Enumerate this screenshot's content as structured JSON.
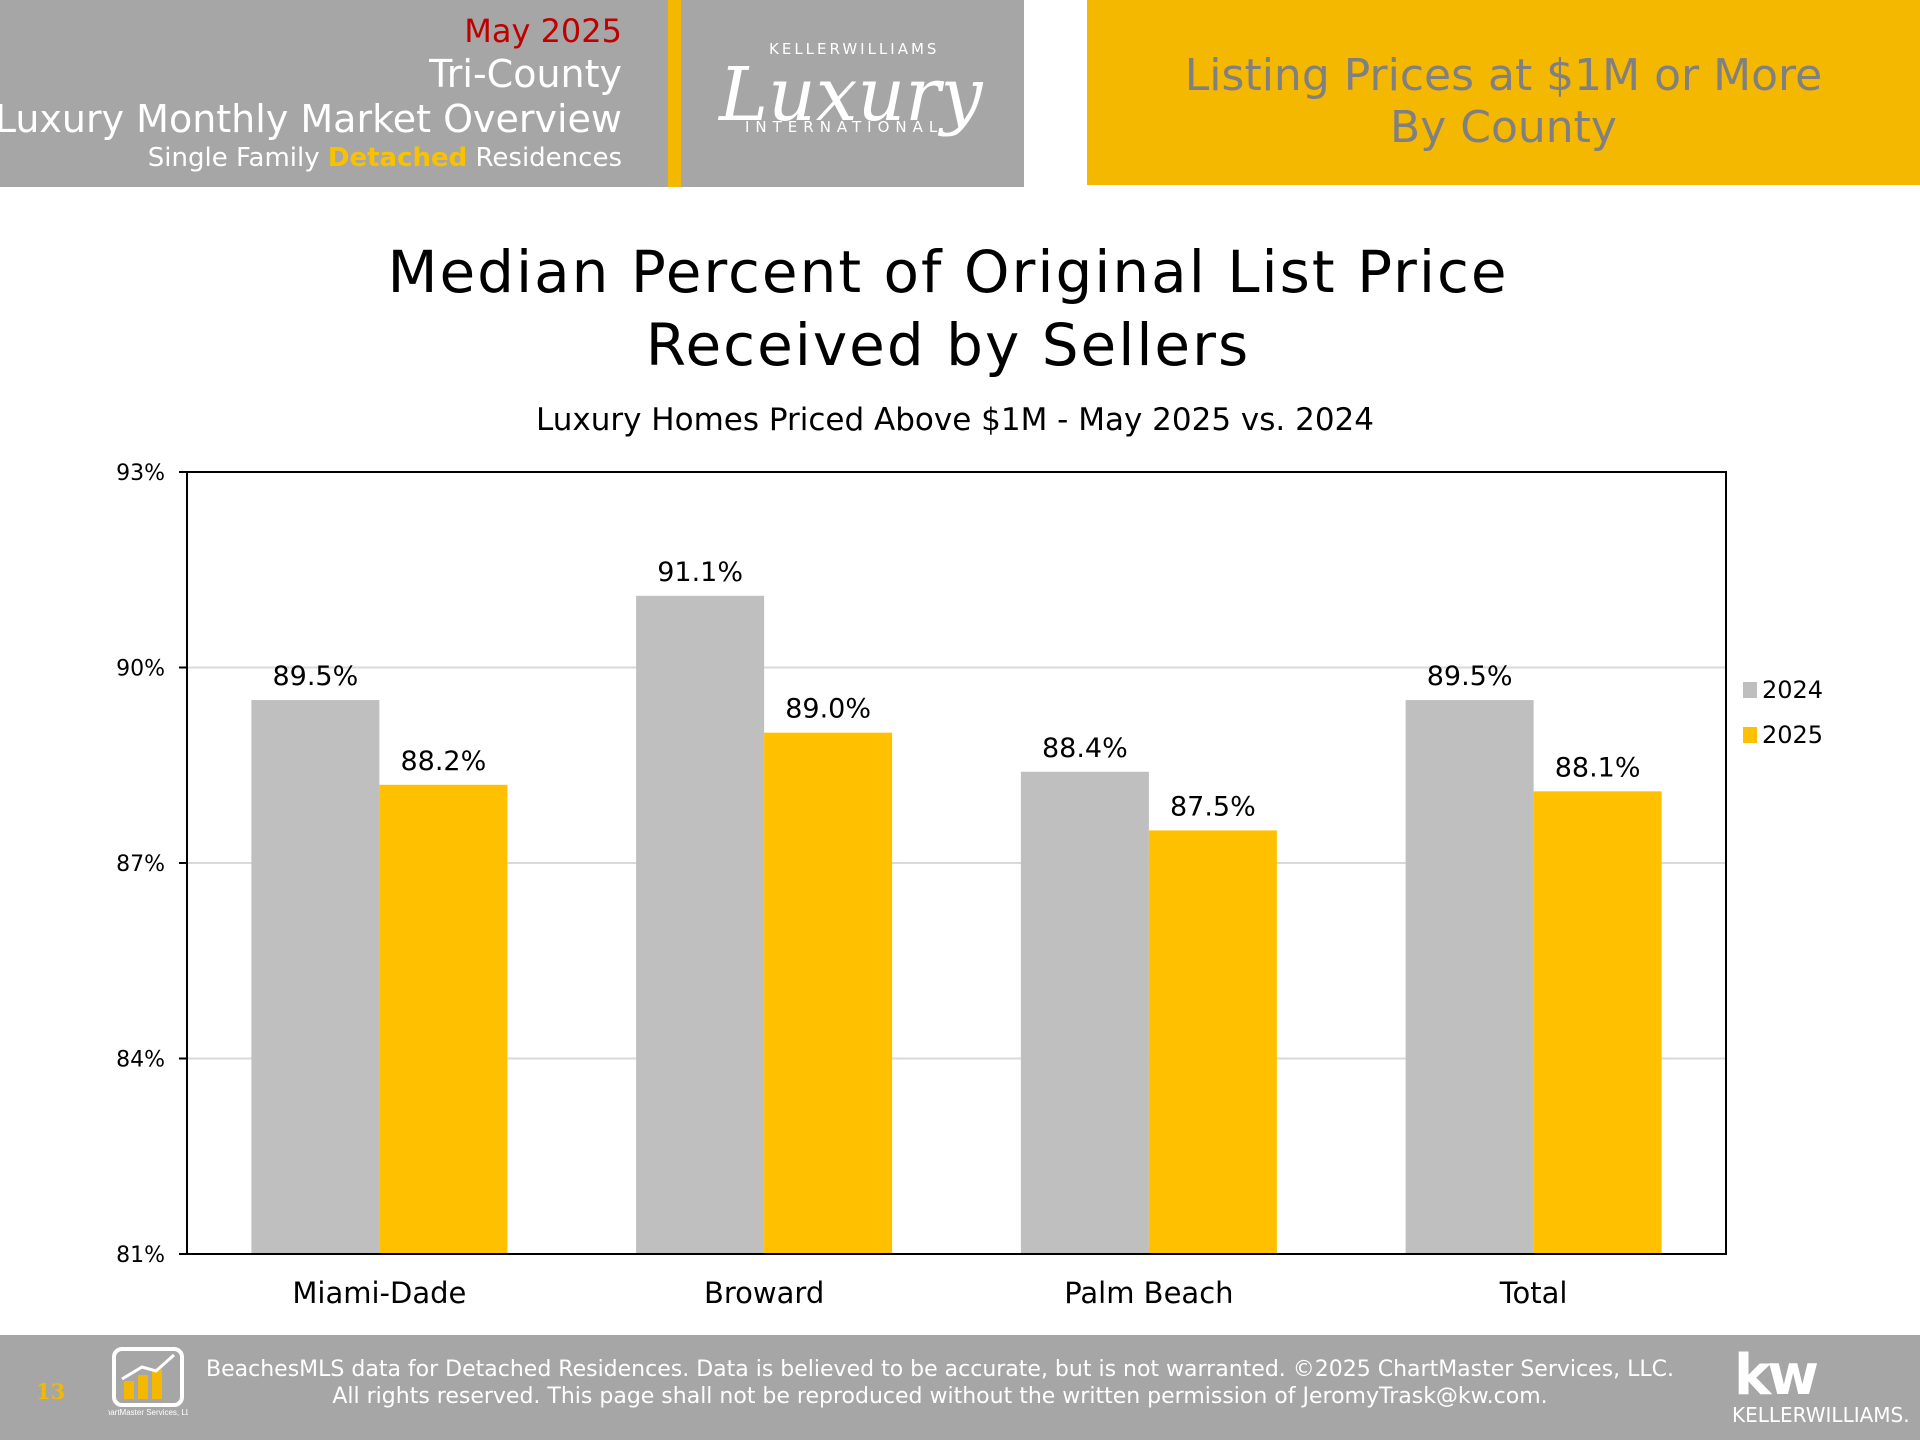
{
  "header": {
    "month": "May 2025",
    "region": "Tri-County",
    "overview": "Luxury Monthly Market Overview",
    "subtitle_pre": "Single Family ",
    "subtitle_highlight": "Detached",
    "subtitle_post": " Residences",
    "logo_top": "KELLERWILLIAMS",
    "logo_script": "Luxury",
    "logo_bottom": "INTERNATIONAL",
    "section_line1": "Listing Prices at $1M or More",
    "section_line2": "By County"
  },
  "chart_data": {
    "type": "bar",
    "title_line1": "Median Percent of Original List Price",
    "title_line2": "Received by Sellers",
    "subtitle": "Luxury Homes Priced Above $1M - May 2025 vs. 2024",
    "categories": [
      "Miami-Dade",
      "Broward",
      "Palm Beach",
      "Total"
    ],
    "series": [
      {
        "name": "2024",
        "values": [
          89.5,
          91.1,
          88.4,
          89.5
        ],
        "labels": [
          "89.5%",
          "91.1%",
          "88.4%",
          "89.5%"
        ],
        "color": "#bfbfbf"
      },
      {
        "name": "2025",
        "values": [
          88.2,
          89.0,
          87.5,
          88.1
        ],
        "labels": [
          "88.2%",
          "89.0%",
          "87.5%",
          "88.1%"
        ],
        "color": "#ffc000"
      }
    ],
    "ylim": [
      81,
      93
    ],
    "yticks": [
      81,
      84,
      87,
      90,
      93
    ],
    "ytick_labels": [
      "81%",
      "84%",
      "87%",
      "90%",
      "93%"
    ],
    "grid": true,
    "legend_position": "right"
  },
  "footer": {
    "page_number": "13",
    "line1": "BeachesMLS data for Detached Residences.  Data is believed to be accurate, but is not warranted.   ©2025  ChartMaster Services, LLC.",
    "line2": "All rights reserved. This page shall not be reproduced without the written permission of JeromyTrask@kw.com.",
    "chartmaster_logo_text": "ChartMaster Services, LLC",
    "kw_mark": "kw",
    "kw_name": "KELLERWILLIAMS."
  },
  "colors": {
    "header_gray": "#a6a6a6",
    "accent_gold": "#f5b800",
    "month_red": "#c00000",
    "bar_2024": "#bfbfbf",
    "bar_2025": "#ffc000"
  }
}
